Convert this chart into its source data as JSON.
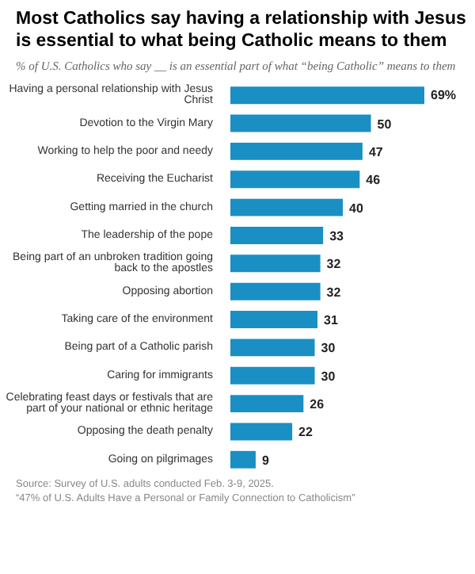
{
  "chart_data": {
    "type": "bar",
    "orientation": "horizontal",
    "data_labels": true,
    "title": "Most Catholics say having a relationship with Jesus is essential to what being Catholic means to them",
    "subtitle": "% of U.S. Catholics who say __ is an essential part of what “being Catholic” means to them",
    "categories": [
      "Having a personal relationship with Jesus Christ",
      "Devotion to the Virgin Mary",
      "Working to help the poor and needy",
      "Receiving the Eucharist",
      "Getting married in the church",
      "The leadership of the pope",
      "Being part of an unbroken tradition going back to the apostles",
      "Opposing abortion",
      "Taking care of the environment",
      "Being part of a Catholic parish",
      "Caring for immigrants",
      "Celebrating feast days or festivals that are part of your national or ethnic heritage",
      "Opposing the death penalty",
      "Going on pilgrimages"
    ],
    "values": [
      69,
      50,
      47,
      46,
      40,
      33,
      32,
      32,
      31,
      30,
      30,
      26,
      22,
      9
    ],
    "value_labels": [
      "69%",
      "50",
      "47",
      "46",
      "40",
      "33",
      "32",
      "32",
      "31",
      "30",
      "30",
      "26",
      "22",
      "9"
    ],
    "color": "#1a8fc4",
    "annotations": [
      "Source: Survey of U.S. adults conducted Feb. 3-9, 2025.",
      "“47% of U.S. Adults Have a Personal or Family Connection to Catholicism”"
    ]
  }
}
